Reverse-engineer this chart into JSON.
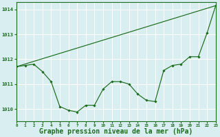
{
  "background_color": "#d8eef0",
  "grid_color": "#c0dde0",
  "line_color": "#1a6b1a",
  "xlabel": "Graphe pression niveau de la mer (hPa)",
  "xlabel_fontsize": 7.0,
  "xlim": [
    0,
    23
  ],
  "ylim": [
    1009.5,
    1014.3
  ],
  "yticks": [
    1010,
    1011,
    1012,
    1013,
    1014
  ],
  "xticks": [
    0,
    1,
    2,
    3,
    4,
    5,
    6,
    7,
    8,
    9,
    10,
    11,
    12,
    13,
    14,
    15,
    16,
    17,
    18,
    19,
    20,
    21,
    22,
    23
  ],
  "trend_x": [
    0,
    23
  ],
  "trend_y": [
    1011.7,
    1014.15
  ],
  "detail_x": [
    0,
    1,
    2,
    3,
    4,
    5,
    6,
    7,
    8,
    9,
    10,
    11,
    12,
    13,
    14,
    15,
    16,
    17,
    18,
    19,
    20,
    21,
    22,
    23
  ],
  "detail_y": [
    1011.7,
    1011.75,
    1011.8,
    1011.5,
    1011.1,
    1010.1,
    1009.95,
    1009.88,
    1010.15,
    1010.15,
    1010.8,
    1011.1,
    1011.1,
    1011.0,
    1010.6,
    1010.35,
    1010.3,
    1011.55,
    1011.75,
    1011.8,
    1012.1,
    1012.1,
    1013.05,
    1014.15
  ]
}
